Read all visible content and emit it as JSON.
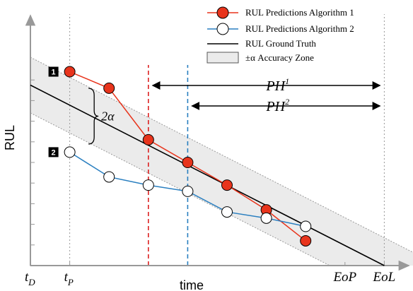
{
  "chart_data": {
    "type": "line",
    "xlabel": "time",
    "ylabel": "RUL",
    "legend": {
      "placement": "top-right",
      "entries": [
        "RUL Predictions Algorithm 1",
        "RUL Predictions Algorithm 2",
        "RUL Ground Truth",
        "±α Accuracy Zone"
      ]
    },
    "x_tick_labels": [
      {
        "x": 0,
        "main": "t",
        "sub": "D"
      },
      {
        "x": 1,
        "main": "t",
        "sub": "P"
      },
      {
        "x": 8,
        "main": "EoP",
        "sub": ""
      },
      {
        "x": 9,
        "main": "EoL",
        "sub": ""
      }
    ],
    "xlim": [
      0,
      10
    ],
    "ylim": [
      0,
      11
    ],
    "ground_truth": {
      "x": [
        0,
        9
      ],
      "y": [
        8.75,
        0
      ]
    },
    "accuracy_zone": {
      "alpha": 1.35
    },
    "series": [
      {
        "name": "RUL Predictions Algorithm 1",
        "color": "#e8341c",
        "fill": "#e8341c",
        "marker_label": "1",
        "x": [
          1,
          2,
          3,
          4,
          5,
          6,
          7
        ],
        "y": [
          9.4,
          8.6,
          6.1,
          5.0,
          3.9,
          2.7,
          1.2
        ]
      },
      {
        "name": "RUL Predictions Algorithm 2",
        "color": "#2a7fc0",
        "fill": "#ffffff",
        "marker_label": "2",
        "x": [
          1,
          2,
          3,
          4,
          5,
          6,
          7
        ],
        "y": [
          5.5,
          4.3,
          3.9,
          3.6,
          2.6,
          2.3,
          1.9
        ]
      }
    ],
    "vertical_lines": [
      {
        "x": 1,
        "color": "#999999",
        "style": "dotted"
      },
      {
        "x": 3,
        "color": "#dd2222",
        "style": "dashed"
      },
      {
        "x": 4,
        "color": "#2a7fc0",
        "style": "dashed"
      },
      {
        "x": 9,
        "color": "#999999",
        "style": "dotted"
      }
    ],
    "annotations": {
      "alpha_label": "2α",
      "ph1": {
        "label": "PH",
        "sup": "1",
        "from_x": 3,
        "to_x": 9
      },
      "ph2": {
        "label": "PH",
        "sup": "2",
        "from_x": 4,
        "to_x": 9
      }
    },
    "y_ticks": [
      1,
      2,
      3,
      4,
      5,
      6,
      7,
      8,
      9
    ]
  }
}
